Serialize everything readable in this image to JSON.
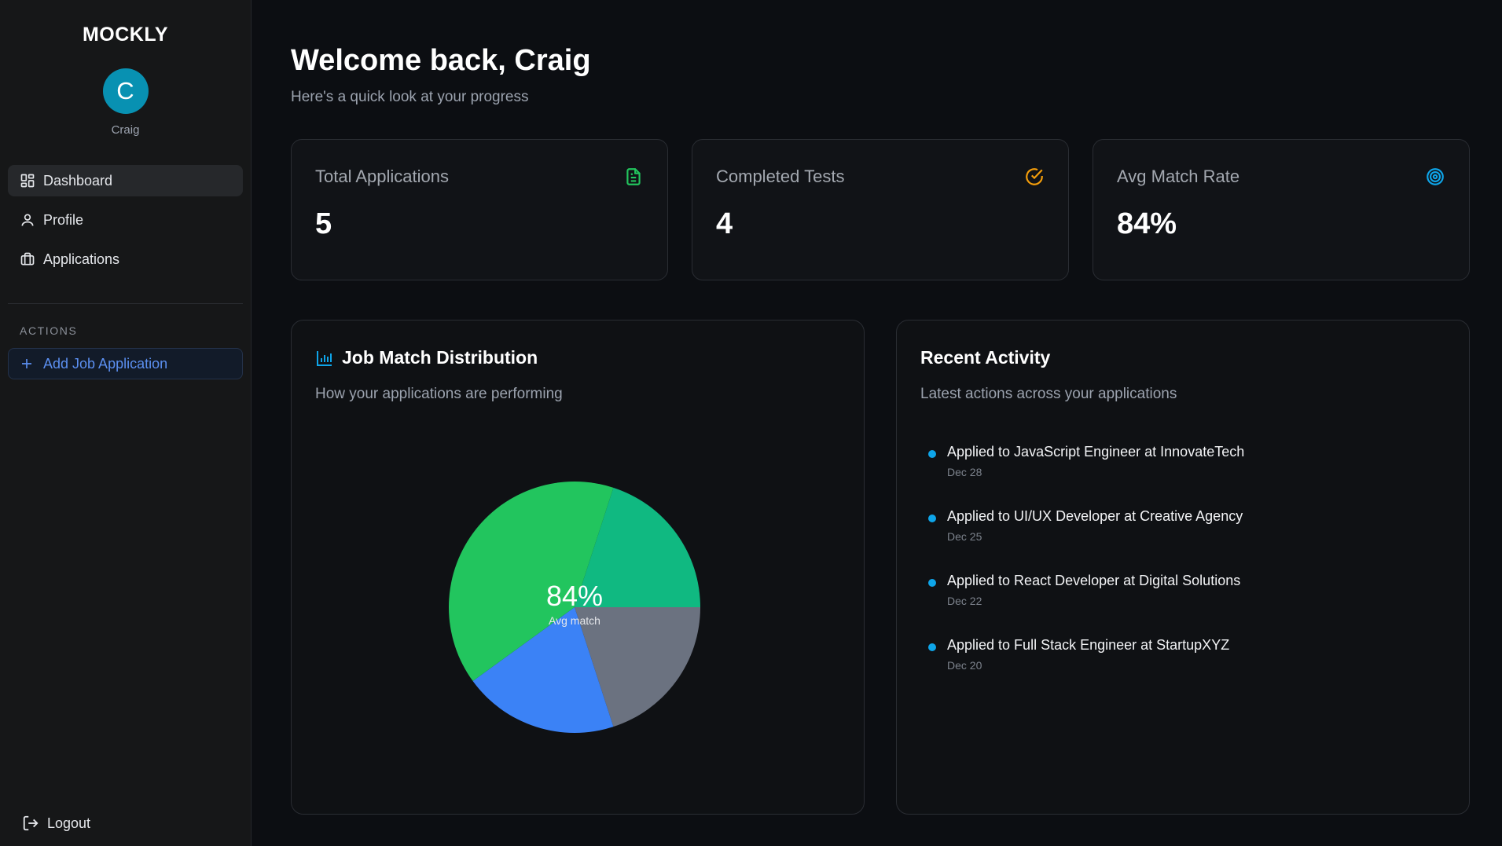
{
  "sidebar": {
    "brand": "MOCKLY",
    "avatar_letter": "C",
    "user_name": "Craig",
    "nav": [
      {
        "label": "Dashboard",
        "icon": "dashboard-icon",
        "active": true
      },
      {
        "label": "Profile",
        "icon": "user-icon",
        "active": false
      },
      {
        "label": "Applications",
        "icon": "briefcase-icon",
        "active": false
      }
    ],
    "actions_label": "ACTIONS",
    "add_label": "Add Job Application",
    "logout_label": "Logout"
  },
  "header": {
    "title": "Welcome back, Craig",
    "subtitle": "Here's a quick look at your progress"
  },
  "stats": [
    {
      "label": "Total Applications",
      "value": "5",
      "icon": "document-icon",
      "color": "#22c55e"
    },
    {
      "label": "Completed Tests",
      "value": "4",
      "icon": "check-circle-icon",
      "color": "#f59e0b"
    },
    {
      "label": "Avg Match Rate",
      "value": "84%",
      "icon": "target-icon",
      "color": "#0ea5e9"
    }
  ],
  "distribution": {
    "title": "Job Match Distribution",
    "subtitle": "How your applications are performing",
    "center_value": "84%",
    "center_label": "Avg match"
  },
  "chart_data": {
    "type": "pie",
    "values": [
      0.2,
      0.2,
      0.2,
      0.4
    ],
    "colors": [
      "#10b981",
      "#6b7280",
      "#3b82f6",
      "#22c55e"
    ],
    "start_angle_deg": 18
  },
  "activity": {
    "title": "Recent Activity",
    "subtitle": "Latest actions across your applications",
    "items": [
      {
        "text": "Applied to JavaScript Engineer at InnovateTech",
        "date": "Dec 28"
      },
      {
        "text": "Applied to UI/UX Developer at Creative Agency",
        "date": "Dec 25"
      },
      {
        "text": "Applied to React Developer at Digital Solutions",
        "date": "Dec 22"
      },
      {
        "text": "Applied to Full Stack Engineer at StartupXYZ",
        "date": "Dec 20"
      }
    ]
  },
  "colors": {
    "accent": "#0891b2",
    "link": "#5b8ff0",
    "activity_dot": "#0ea5e9"
  }
}
